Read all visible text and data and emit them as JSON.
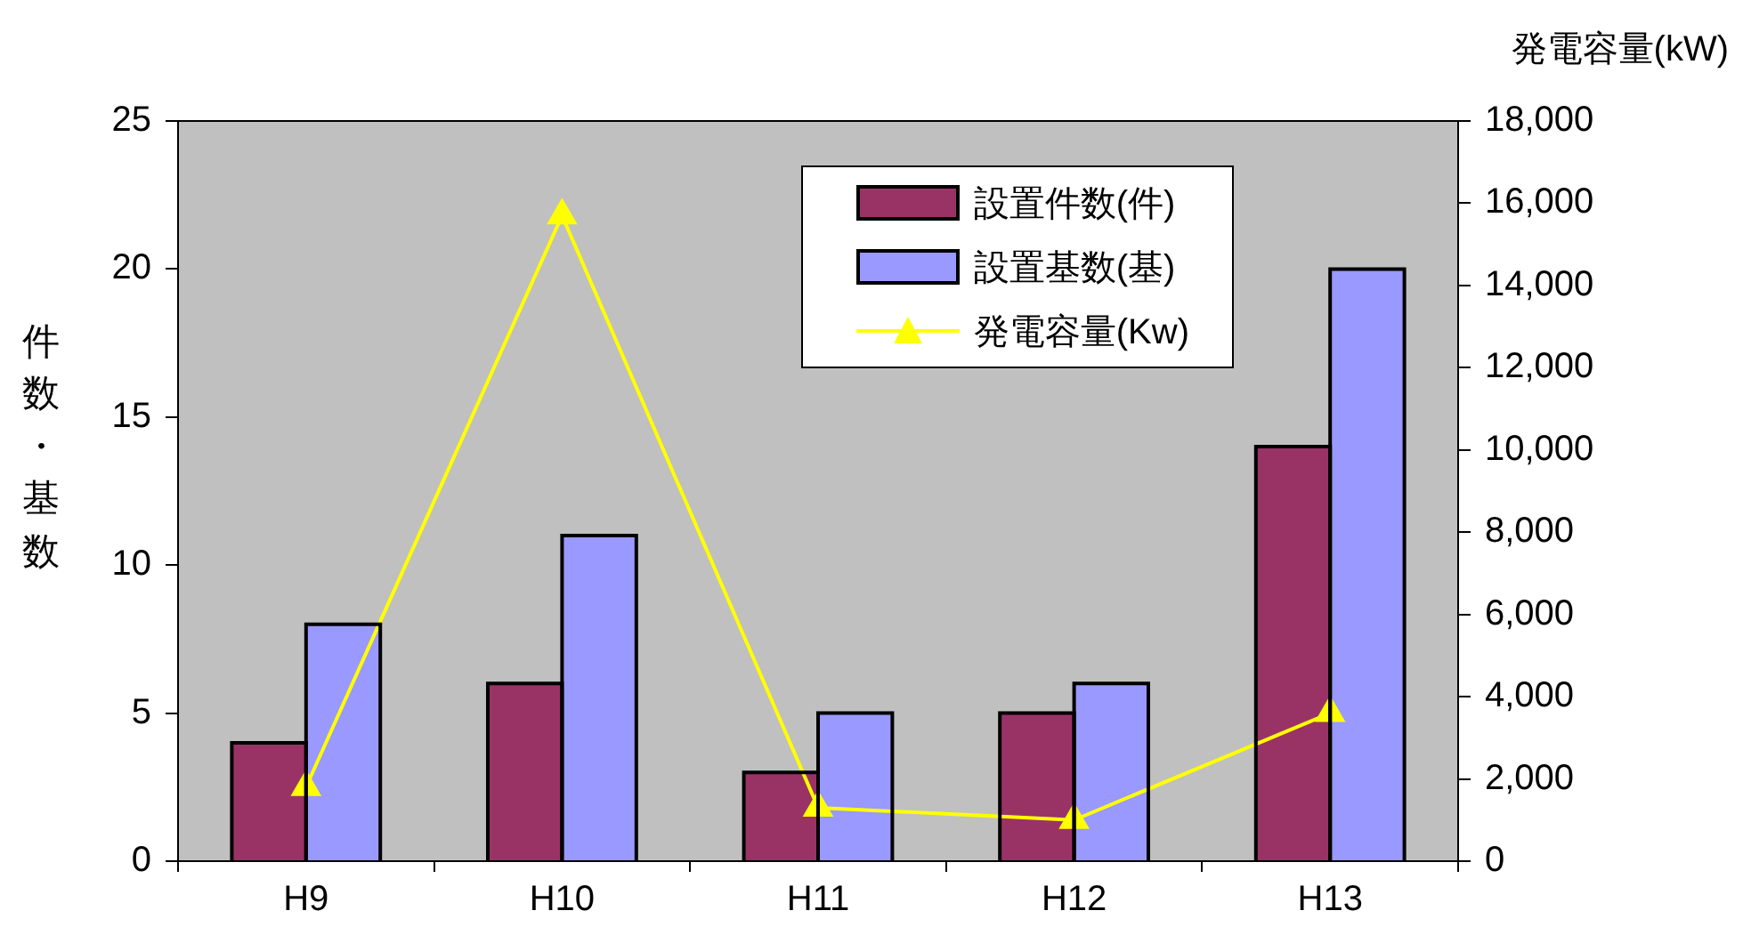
{
  "chart_data": {
    "type": "bar",
    "ylabel": "件数・基数",
    "y2label": "発電容量(kW)",
    "categories": [
      "H9",
      "H10",
      "H11",
      "H12",
      "H13"
    ],
    "series": [
      {
        "name": "設置件数(件)",
        "color": "#993366",
        "values": [
          4,
          6,
          3,
          5,
          14
        ]
      },
      {
        "name": "設置基数(基)",
        "color": "#9999ff",
        "values": [
          8,
          11,
          5,
          6,
          20
        ]
      },
      {
        "name": "発電容量(Kw)",
        "type": "line",
        "axis": "y2",
        "color": "#ffff00",
        "marker": "triangle",
        "values": [
          1800,
          15700,
          1300,
          1000,
          3600
        ]
      }
    ],
    "ylim": [
      0,
      25
    ],
    "yticks": [
      0,
      5,
      10,
      15,
      20,
      25
    ],
    "y2lim": [
      0,
      18000
    ],
    "y2ticks": [
      {
        "value": 0,
        "label": "0"
      },
      {
        "value": 2000,
        "label": "2,000"
      },
      {
        "value": 4000,
        "label": "4,000"
      },
      {
        "value": 6000,
        "label": "6,000"
      },
      {
        "value": 8000,
        "label": "8,000"
      },
      {
        "value": 10000,
        "label": "10,000"
      },
      {
        "value": 12000,
        "label": "12,000"
      },
      {
        "value": 14000,
        "label": "14,000"
      },
      {
        "value": 16000,
        "label": "16,000"
      },
      {
        "value": 18000,
        "label": "18,000"
      }
    ],
    "grid": false,
    "legend": "top right"
  }
}
